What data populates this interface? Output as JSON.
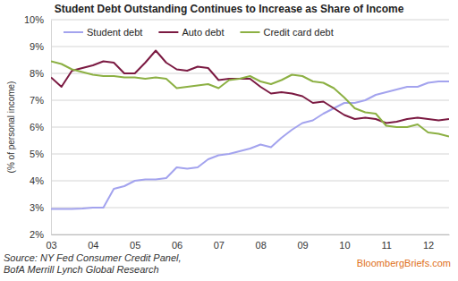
{
  "chart_data": {
    "type": "line",
    "title": "Student Debt Outstanding Continues to Increase as Share of Income",
    "y_label": "(% of personal income)",
    "source": [
      "Source: NY Fed Consumer Credit Panel,",
      "BofA Merrill Lynch Global Research"
    ],
    "annotations": [
      "BloombergBriefs.com"
    ],
    "x": [
      2003,
      2003.25,
      2003.5,
      2003.75,
      2004,
      2004.25,
      2004.5,
      2004.75,
      2005,
      2005.25,
      2005.5,
      2005.75,
      2006,
      2006.25,
      2006.5,
      2006.75,
      2007,
      2007.25,
      2007.5,
      2007.75,
      2008,
      2008.25,
      2008.5,
      2008.75,
      2009,
      2009.25,
      2009.5,
      2009.75,
      2010,
      2010.25,
      2010.5,
      2010.75,
      2011,
      2011.25,
      2011.5,
      2011.75,
      2012,
      2012.25,
      2012.5
    ],
    "series": [
      {
        "name": "Student debt",
        "color": "#a3a3ee",
        "values": [
          2.95,
          2.95,
          2.95,
          2.97,
          3.0,
          3.0,
          3.7,
          3.8,
          4.0,
          4.05,
          4.05,
          4.1,
          4.5,
          4.45,
          4.5,
          4.8,
          4.95,
          5.0,
          5.1,
          5.2,
          5.35,
          5.25,
          5.6,
          5.9,
          6.15,
          6.25,
          6.5,
          6.7,
          6.9,
          6.9,
          7.0,
          7.2,
          7.3,
          7.4,
          7.5,
          7.5,
          7.65,
          7.7,
          7.7
        ]
      },
      {
        "name": "Auto debt",
        "color": "#7b1a42",
        "values": [
          7.85,
          7.5,
          8.1,
          8.2,
          8.3,
          8.45,
          8.4,
          8.0,
          8.0,
          8.4,
          8.85,
          8.4,
          8.15,
          8.1,
          8.25,
          8.2,
          7.75,
          7.8,
          7.8,
          7.8,
          7.5,
          7.25,
          7.3,
          7.25,
          7.15,
          6.9,
          6.95,
          6.7,
          6.45,
          6.3,
          6.35,
          6.3,
          6.15,
          6.2,
          6.3,
          6.35,
          6.3,
          6.25,
          6.3
        ]
      },
      {
        "name": "Credit card debt",
        "color": "#8cb043",
        "values": [
          8.45,
          8.35,
          8.15,
          8.05,
          7.95,
          7.9,
          7.9,
          7.85,
          7.85,
          7.8,
          7.85,
          7.8,
          7.45,
          7.5,
          7.55,
          7.6,
          7.45,
          7.75,
          7.8,
          7.9,
          7.7,
          7.6,
          7.75,
          7.95,
          7.9,
          7.7,
          7.65,
          7.45,
          7.1,
          6.7,
          6.55,
          6.5,
          6.05,
          6.0,
          6.0,
          6.1,
          5.8,
          5.75,
          5.65
        ]
      }
    ],
    "xlim": [
      2003,
      2012.5
    ],
    "xticks": [
      {
        "value": 2003,
        "label": "03"
      },
      {
        "value": 2004,
        "label": "04"
      },
      {
        "value": 2005,
        "label": "05"
      },
      {
        "value": 2006,
        "label": "06"
      },
      {
        "value": 2007,
        "label": "07"
      },
      {
        "value": 2008,
        "label": "08"
      },
      {
        "value": 2009,
        "label": "09"
      },
      {
        "value": 2010,
        "label": "10"
      },
      {
        "value": 2011,
        "label": "11"
      },
      {
        "value": 2012,
        "label": "12"
      }
    ],
    "ylim": [
      2,
      10
    ],
    "yticks": [
      {
        "value": 2,
        "label": "2%"
      },
      {
        "value": 3,
        "label": "3%"
      },
      {
        "value": 4,
        "label": "4%"
      },
      {
        "value": 5,
        "label": "5%"
      },
      {
        "value": 6,
        "label": "6%"
      },
      {
        "value": 7,
        "label": "7%"
      },
      {
        "value": 8,
        "label": "8%"
      },
      {
        "value": 9,
        "label": "9%"
      },
      {
        "value": 10,
        "label": "10%"
      }
    ],
    "grid": true,
    "legend": "top-left"
  }
}
